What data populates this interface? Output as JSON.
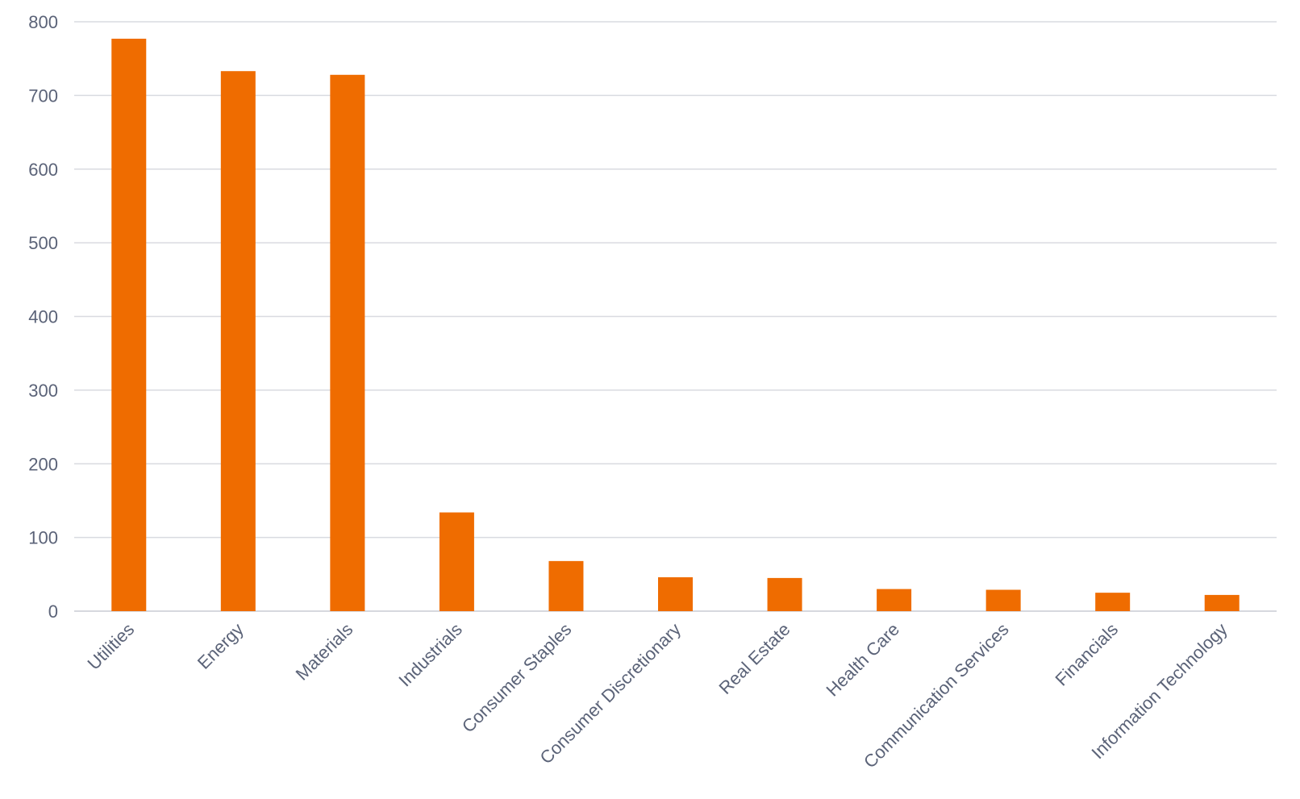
{
  "chart_data": {
    "type": "bar",
    "categories": [
      "Utilities",
      "Energy",
      "Materials",
      "Industrials",
      "Consumer Staples",
      "Consumer Discretionary",
      "Real Estate",
      "Health Care",
      "Communication Services",
      "Financials",
      "Information Technology"
    ],
    "values": [
      777,
      733,
      728,
      134,
      68,
      46,
      45,
      30,
      29,
      25,
      22
    ],
    "title": "",
    "xlabel": "",
    "ylabel": "",
    "ylim": [
      0,
      800
    ],
    "yticks": [
      0,
      100,
      200,
      300,
      400,
      500,
      600,
      700,
      800
    ],
    "grid": true,
    "legend": "none",
    "colors": {
      "bar": "#ef6c00",
      "grid": "#d9dbe0",
      "tick_text": "#5b6378"
    }
  }
}
